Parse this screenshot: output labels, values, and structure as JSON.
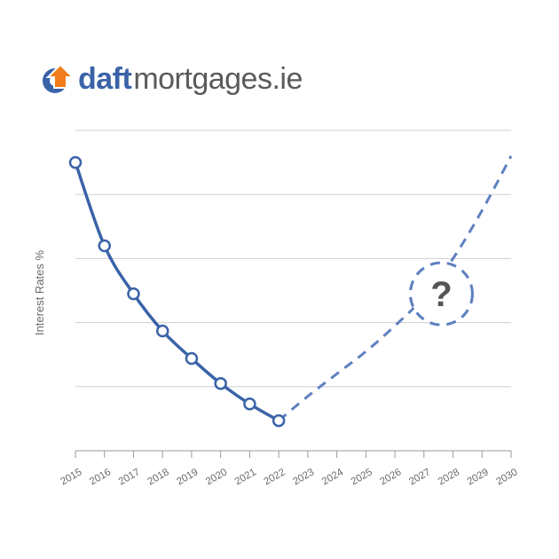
{
  "logo": {
    "brand_bold": "daft",
    "brand_rest": "mortgages.ie",
    "icon": "house-arrow-icon",
    "colors": {
      "orange": "#f07c1b",
      "blue": "#3a63a8",
      "grey": "#5a5a5a"
    }
  },
  "chart_data": {
    "type": "line",
    "ylabel": "Interest Rates %",
    "categories": [
      "2015",
      "2016",
      "2017",
      "2018",
      "2019",
      "2020",
      "2021",
      "2022",
      "2023",
      "2024",
      "2025",
      "2026",
      "2027",
      "2028",
      "2029",
      "2030"
    ],
    "ylim": [
      0,
      5
    ],
    "grid": true,
    "series": [
      {
        "style": "solid-with-markers",
        "x": [
          "2015",
          "2016",
          "2017",
          "2018",
          "2019",
          "2020",
          "2021",
          "2022"
        ],
        "values": [
          4.5,
          3.2,
          2.45,
          1.87,
          1.44,
          1.05,
          0.73,
          0.47
        ]
      },
      {
        "style": "dashed",
        "x": [
          "2022",
          "2023",
          "2024",
          "2025",
          "2026",
          "2027",
          "2028",
          "2029",
          "2030"
        ],
        "values": [
          0.47,
          0.85,
          1.2,
          1.55,
          1.95,
          2.4,
          3.0,
          3.75,
          4.6
        ]
      }
    ],
    "annotation": {
      "text": "?",
      "x": "2027.6",
      "y": 2.45
    },
    "colors": {
      "line": "#3a63a8",
      "dashed": "#5e80bf",
      "grid": "#cfcfcf",
      "axis": "#9a9a9a"
    }
  }
}
